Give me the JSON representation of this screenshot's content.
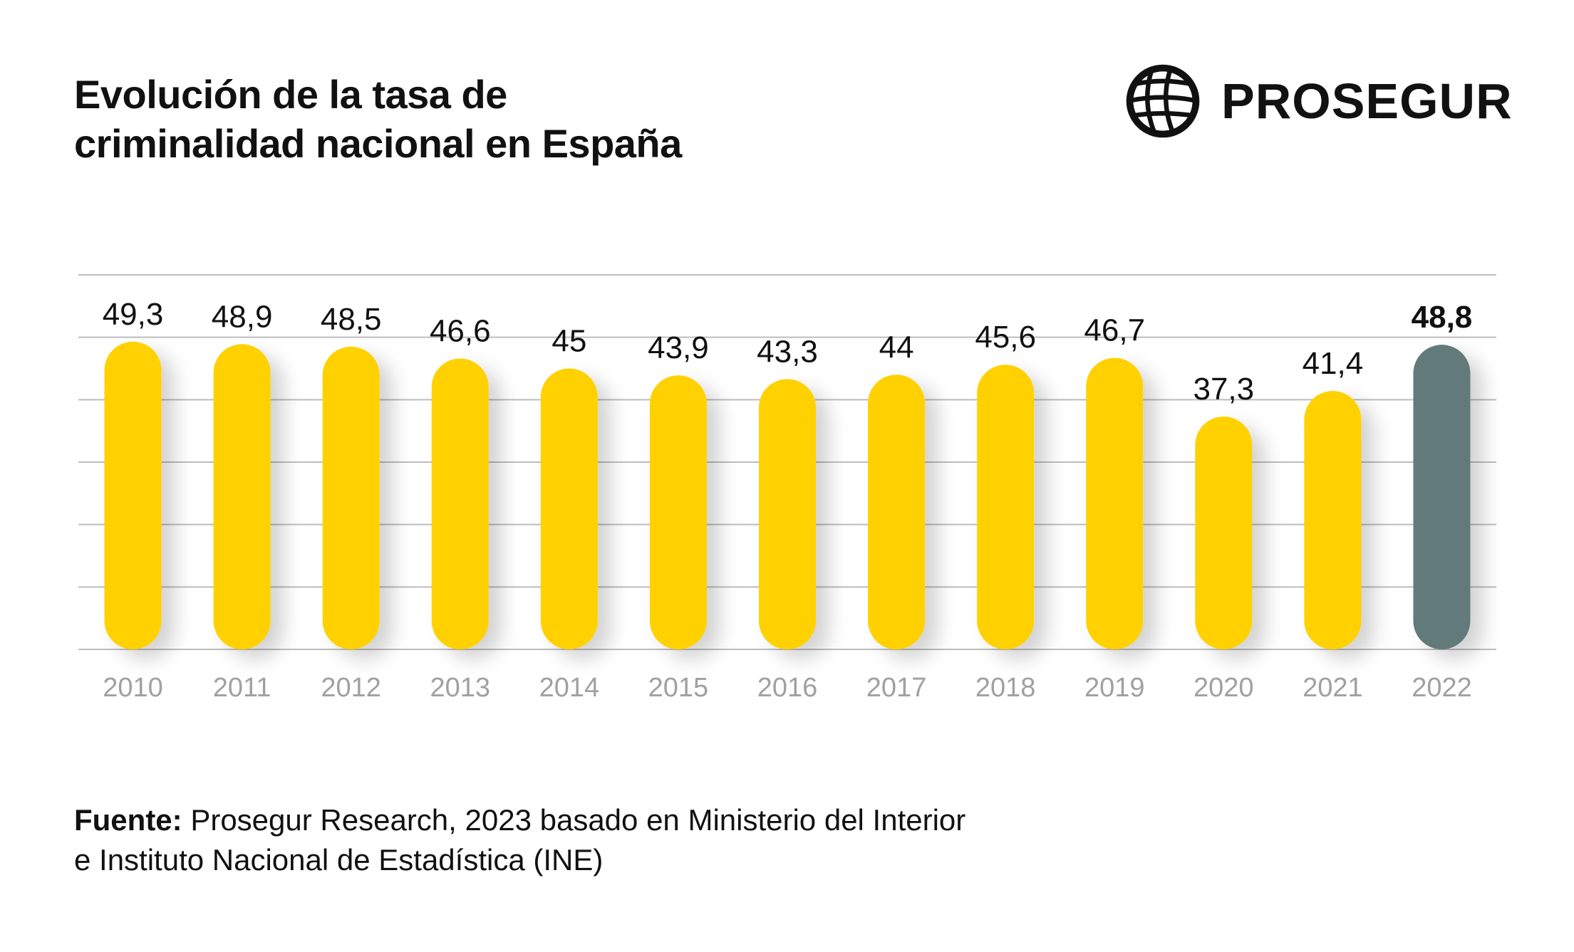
{
  "header": {
    "title_line1": "Evolución de la tasa de",
    "title_line2": "criminalidad nacional en España"
  },
  "logo": {
    "icon": "globe-icon",
    "text": "PROSEGUR"
  },
  "chart_data": {
    "type": "bar",
    "categories": [
      "2010",
      "2011",
      "2012",
      "2013",
      "2014",
      "2015",
      "2016",
      "2017",
      "2018",
      "2019",
      "2020",
      "2021",
      "2022"
    ],
    "values": [
      49.3,
      48.9,
      48.5,
      46.6,
      45,
      43.9,
      43.3,
      44,
      45.6,
      46.7,
      37.3,
      41.4,
      48.8
    ],
    "value_labels": [
      "49,3",
      "48,9",
      "48,5",
      "46,6",
      "45",
      "43,9",
      "43,3",
      "44",
      "45,6",
      "46,7",
      "37,3",
      "41,4",
      "48,8"
    ],
    "highlight_index": 12,
    "ylim": [
      0,
      60
    ],
    "grid": true,
    "colors": {
      "bar": "#FFD100",
      "highlight": "#637A7A",
      "grid": "#BDBDBD",
      "tick": "#A0A0A0"
    }
  },
  "footer": {
    "source_label": "Fuente:",
    "source_line1": " Prosegur Research, 2023 basado en Ministerio del Interior",
    "source_line2": "e Instituto Nacional de Estadística (INE)"
  }
}
